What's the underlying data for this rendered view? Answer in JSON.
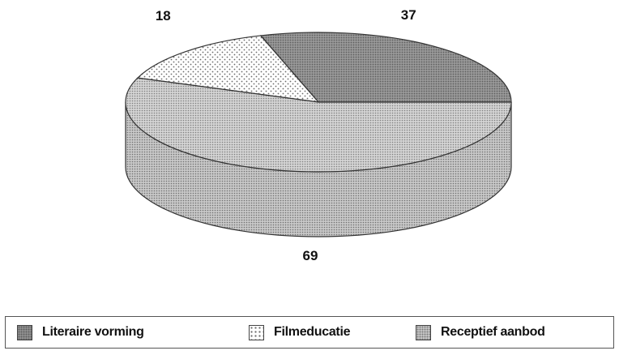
{
  "chart_data": {
    "type": "pie",
    "style": "3d",
    "slices": [
      {
        "label": "Literaire vorming",
        "value": 37,
        "color": "#9a9a9a"
      },
      {
        "label": "Filmeducatie",
        "value": 18,
        "color": "#ffffff"
      },
      {
        "label": "Receptief aanbod",
        "value": 69,
        "color": "#d4d4d4"
      }
    ],
    "legend_position": "bottom"
  }
}
